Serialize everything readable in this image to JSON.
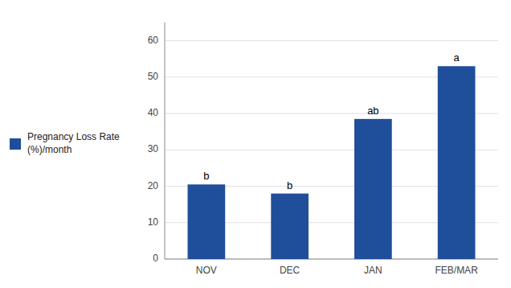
{
  "chart_data": {
    "type": "bar",
    "categories": [
      "NOV",
      "DEC",
      "JAN",
      "FEB/MAR"
    ],
    "series": [
      {
        "name": "Pregnancy Loss Rate\n(%)/month",
        "color": "#1F4E9A",
        "values": [
          20.5,
          18.0,
          38.5,
          53.0
        ]
      }
    ],
    "annotations": [
      "b",
      "b",
      "ab",
      "a"
    ],
    "ylim": [
      0,
      65
    ],
    "yticks": [
      0,
      10,
      20,
      30,
      40,
      50,
      60
    ],
    "grid": true,
    "legend": "left"
  }
}
